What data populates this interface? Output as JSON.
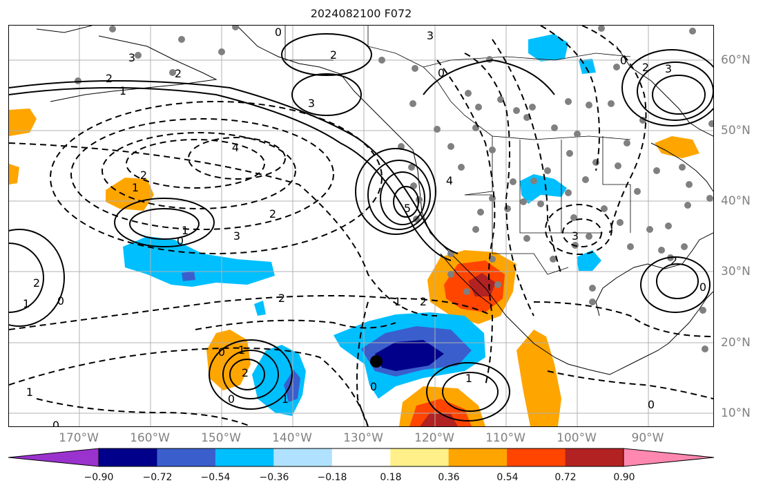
{
  "title": "2024082100 F072",
  "lon_labels": [
    "170°W",
    "160°W",
    "150°W",
    "140°W",
    "130°W",
    "120°W",
    "110°W",
    "100°W",
    "90°W"
  ],
  "lat_labels": [
    "60°N",
    "50°N",
    "40°N",
    "30°N",
    "20°N",
    "10°N"
  ],
  "contour_labels": [
    "2",
    "1",
    "3",
    "2",
    "0",
    "4",
    "2",
    "3",
    "2",
    "1",
    "0",
    "2",
    "1",
    "0",
    "1",
    "2",
    "2",
    "0",
    "1",
    "0",
    "1",
    "0",
    "1",
    "3",
    "5",
    "4",
    "2",
    "3",
    "0",
    "3",
    "2",
    "0",
    "3",
    "2",
    "0",
    "1",
    "2",
    "0",
    "0",
    "1"
  ],
  "colorbar": {
    "ticks": [
      "−0.90",
      "−0.72",
      "−0.54",
      "−0.36",
      "−0.18",
      "0.18",
      "0.36",
      "0.54",
      "0.72",
      "0.90"
    ],
    "colors": [
      "#9a32cd",
      "#00008b",
      "#3a5fcd",
      "#00bfff",
      "#b0e2ff",
      "#ffffff",
      "#fff08a",
      "#ffa500",
      "#ff4500",
      "#b22222",
      "#ff88b0"
    ]
  },
  "colors": {
    "coastline": "#000000",
    "gridline": "#b0b0b0",
    "station": "#808080",
    "contour": "#000000"
  }
}
